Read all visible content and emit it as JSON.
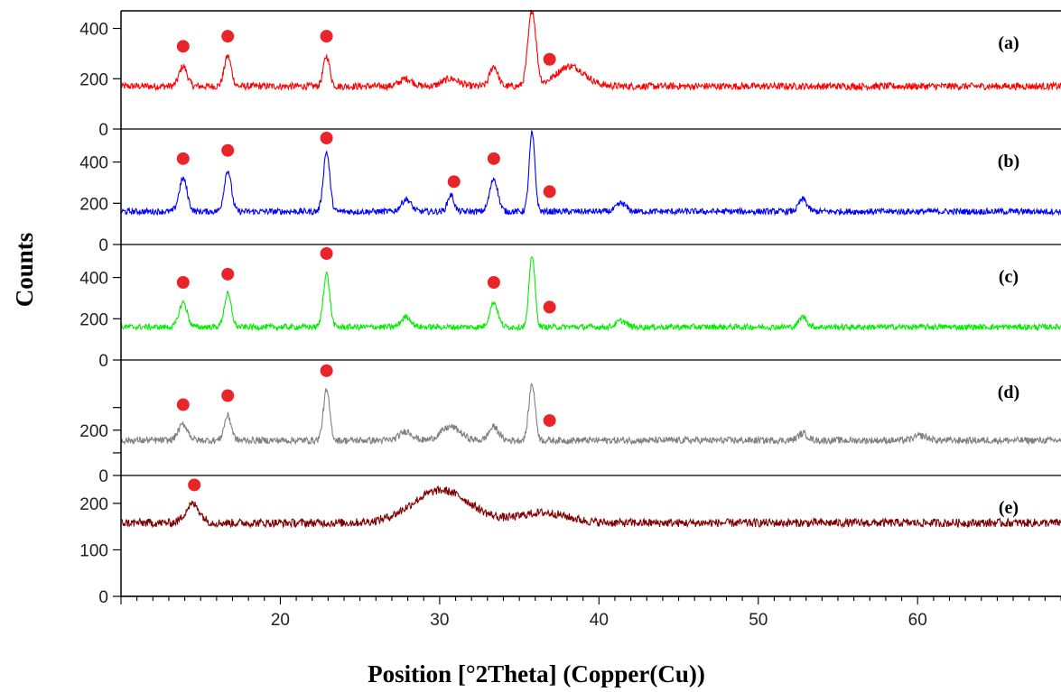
{
  "chart_data": {
    "type": "line",
    "xlabel": "Position [°2Theta] (Copper(Cu))",
    "ylabel": "Counts",
    "xlim": [
      10,
      69
    ],
    "x_ticks": [
      20,
      30,
      40,
      50,
      60
    ],
    "grid": false,
    "legend": "none",
    "marker_color": "#e8262a",
    "series": [
      {
        "name": "(a)",
        "color": "#ff0000",
        "y_ticks": [
          "0",
          "200",
          "400"
        ],
        "ylim": [
          0,
          470
        ],
        "baseline": 170,
        "noise": 14,
        "peaks": [
          {
            "x": 13.9,
            "h": 80,
            "w": 0.25
          },
          {
            "x": 16.7,
            "h": 120,
            "w": 0.22
          },
          {
            "x": 22.9,
            "h": 120,
            "w": 0.2
          },
          {
            "x": 27.9,
            "h": 30,
            "w": 0.4
          },
          {
            "x": 30.7,
            "h": 30,
            "w": 0.5
          },
          {
            "x": 33.4,
            "h": 80,
            "w": 0.25
          },
          {
            "x": 35.8,
            "h": 300,
            "w": 0.25
          },
          {
            "x": 38.2,
            "h": 80,
            "w": 0.9
          }
        ],
        "markers": [
          13.9,
          16.7,
          22.9,
          36.9
        ]
      },
      {
        "name": "(b)",
        "color": "#0000ff",
        "y_ticks": [
          "0",
          "200",
          "400"
        ],
        "ylim": [
          0,
          560
        ],
        "baseline": 160,
        "noise": 15,
        "peaks": [
          {
            "x": 13.9,
            "h": 160,
            "w": 0.25
          },
          {
            "x": 16.7,
            "h": 200,
            "w": 0.22
          },
          {
            "x": 22.9,
            "h": 290,
            "w": 0.2
          },
          {
            "x": 27.9,
            "h": 60,
            "w": 0.3
          },
          {
            "x": 30.7,
            "h": 80,
            "w": 0.2
          },
          {
            "x": 33.4,
            "h": 160,
            "w": 0.25
          },
          {
            "x": 35.8,
            "h": 380,
            "w": 0.18
          },
          {
            "x": 41.4,
            "h": 40,
            "w": 0.3
          },
          {
            "x": 52.8,
            "h": 60,
            "w": 0.25
          }
        ],
        "markers": [
          13.9,
          16.7,
          22.9,
          30.9,
          33.4,
          36.9
        ]
      },
      {
        "name": "(c)",
        "color": "#00ee00",
        "y_ticks": [
          "0",
          "200",
          "400"
        ],
        "ylim": [
          0,
          560
        ],
        "baseline": 160,
        "noise": 14,
        "peaks": [
          {
            "x": 13.9,
            "h": 120,
            "w": 0.25
          },
          {
            "x": 16.7,
            "h": 160,
            "w": 0.22
          },
          {
            "x": 22.9,
            "h": 260,
            "w": 0.2
          },
          {
            "x": 27.9,
            "h": 50,
            "w": 0.3
          },
          {
            "x": 33.4,
            "h": 120,
            "w": 0.25
          },
          {
            "x": 35.8,
            "h": 350,
            "w": 0.18
          },
          {
            "x": 41.4,
            "h": 30,
            "w": 0.3
          },
          {
            "x": 52.8,
            "h": 50,
            "w": 0.25
          }
        ],
        "markers": [
          13.9,
          16.7,
          22.9,
          33.4,
          36.9
        ]
      },
      {
        "name": "(d)",
        "color": "#808080",
        "y_ticks": [
          "0",
          "",
          "200",
          ""
        ],
        "ylim": [
          0,
          510
        ],
        "baseline": 155,
        "noise": 15,
        "peaks": [
          {
            "x": 13.9,
            "h": 70,
            "w": 0.3
          },
          {
            "x": 16.7,
            "h": 110,
            "w": 0.22
          },
          {
            "x": 22.9,
            "h": 220,
            "w": 0.2
          },
          {
            "x": 27.9,
            "h": 40,
            "w": 0.4
          },
          {
            "x": 30.7,
            "h": 60,
            "w": 0.6
          },
          {
            "x": 33.4,
            "h": 60,
            "w": 0.3
          },
          {
            "x": 35.8,
            "h": 250,
            "w": 0.2
          },
          {
            "x": 52.8,
            "h": 30,
            "w": 0.3
          },
          {
            "x": 60.2,
            "h": 20,
            "w": 0.4
          }
        ],
        "markers": [
          13.9,
          16.7,
          22.9,
          36.9
        ]
      },
      {
        "name": "(e)",
        "color": "#800000",
        "y_ticks": [
          "0",
          "100",
          "200"
        ],
        "ylim": [
          0,
          260
        ],
        "baseline": 158,
        "noise": 9,
        "peaks": [
          {
            "x": 14.5,
            "h": 40,
            "w": 0.45
          },
          {
            "x": 30.1,
            "h": 70,
            "w": 1.8
          },
          {
            "x": 36.5,
            "h": 22,
            "w": 1.5
          }
        ],
        "markers": [
          14.6
        ]
      }
    ]
  }
}
